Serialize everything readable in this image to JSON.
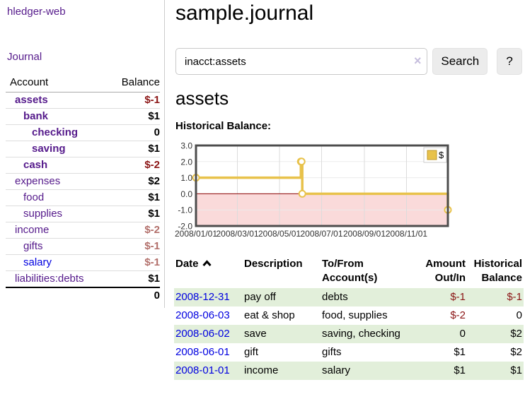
{
  "app": {
    "title": "hledger-web",
    "nav_journal": "Journal"
  },
  "sidebar": {
    "accounts_header": {
      "account": "Account",
      "balance": "Balance"
    },
    "accounts": [
      {
        "name": "assets",
        "level": 1,
        "balance": "$-1",
        "bold": true,
        "negative": true
      },
      {
        "name": "bank",
        "level": 2,
        "balance": "$1",
        "bold": true,
        "negative": false
      },
      {
        "name": "checking",
        "level": 3,
        "balance": "0",
        "bold": true,
        "negative": false
      },
      {
        "name": "saving",
        "level": 3,
        "balance": "$1",
        "bold": true,
        "negative": false
      },
      {
        "name": "cash",
        "level": 2,
        "balance": "$-2",
        "bold": true,
        "negative": true
      },
      {
        "name": "expenses",
        "level": 1,
        "balance": "$2",
        "bold": false,
        "negative": false
      },
      {
        "name": "food",
        "level": 2,
        "balance": "$1",
        "bold": false,
        "negative": false
      },
      {
        "name": "supplies",
        "level": 2,
        "balance": "$1",
        "bold": false,
        "negative": false
      },
      {
        "name": "income",
        "level": 1,
        "balance": "$-2",
        "bold": false,
        "negative": true
      },
      {
        "name": "gifts",
        "level": 2,
        "balance": "$-1",
        "bold": false,
        "negative": true
      },
      {
        "name": "salary",
        "level": 2,
        "balance": "$-1",
        "bold": false,
        "negative": true,
        "link_color": "#0000e0"
      },
      {
        "name": "liabilities:debts",
        "level": 1,
        "balance": "$1",
        "bold": false,
        "negative": false
      }
    ],
    "total": "0"
  },
  "header": {
    "title": "sample.journal"
  },
  "search": {
    "value": "inacct:assets",
    "clear_icon": "×",
    "button": "Search",
    "help_button": "?"
  },
  "account_page": {
    "heading": "assets",
    "chart_title": "Historical Balance:"
  },
  "chart_data": {
    "type": "line",
    "title": "Historical Balance:",
    "series": [
      {
        "name": "$",
        "x": [
          "2008-01-01",
          "2008-06-01",
          "2008-06-02",
          "2008-06-03",
          "2008-12-31"
        ],
        "values": [
          1,
          2,
          2,
          0,
          -1
        ],
        "color": "#e8c24b",
        "step": "after"
      }
    ],
    "x_ticks": [
      "2008/01/01",
      "2008/03/01",
      "2008/05/01",
      "2008/07/01",
      "2008/09/01",
      "2008/11/01"
    ],
    "y_ticks": [
      "3.0",
      "2.0",
      "1.0",
      "0.0",
      "-1.0",
      "-2.0"
    ],
    "ylim": [
      -2,
      3
    ],
    "x_range": [
      "2008-01-01",
      "2008-12-31"
    ],
    "grid": true,
    "legend": {
      "label": "$",
      "position": "top-right"
    },
    "colors": {
      "negative_region": "#fadada",
      "zero_line": "#8b0000",
      "v_grid": "#dcdcdc",
      "h_grid": "#ececec",
      "border": "#4d4d4d",
      "axis_text": "#333333",
      "legend_square_fill": "#e8c24b",
      "legend_square_border": "#c0992c"
    }
  },
  "register": {
    "columns": [
      {
        "label": "Date",
        "sort": true
      },
      {
        "label": "Description"
      },
      {
        "label": "To/From\nAccount(s)"
      },
      {
        "label": "Amount\nOut/In",
        "align": "right"
      },
      {
        "label": "Historical\nBalance",
        "align": "right"
      }
    ],
    "rows": [
      {
        "date": "2008-12-31",
        "description": "pay off",
        "accounts": "debts",
        "amount": "$-1",
        "balance": "$-1",
        "amount_neg": true,
        "balance_neg": true
      },
      {
        "date": "2008-06-03",
        "description": "eat & shop",
        "accounts": "food, supplies",
        "amount": "$-2",
        "balance": "0",
        "amount_neg": true,
        "balance_neg": false
      },
      {
        "date": "2008-06-02",
        "description": "save",
        "accounts": "saving, checking",
        "amount": "0",
        "balance": "$2",
        "amount_neg": false,
        "balance_neg": false
      },
      {
        "date": "2008-06-01",
        "description": "gift",
        "accounts": "gifts",
        "amount": "$1",
        "balance": "$2",
        "amount_neg": false,
        "balance_neg": false
      },
      {
        "date": "2008-01-01",
        "description": "income",
        "accounts": "salary",
        "amount": "$1",
        "balance": "$1",
        "amount_neg": false,
        "balance_neg": false
      }
    ]
  }
}
